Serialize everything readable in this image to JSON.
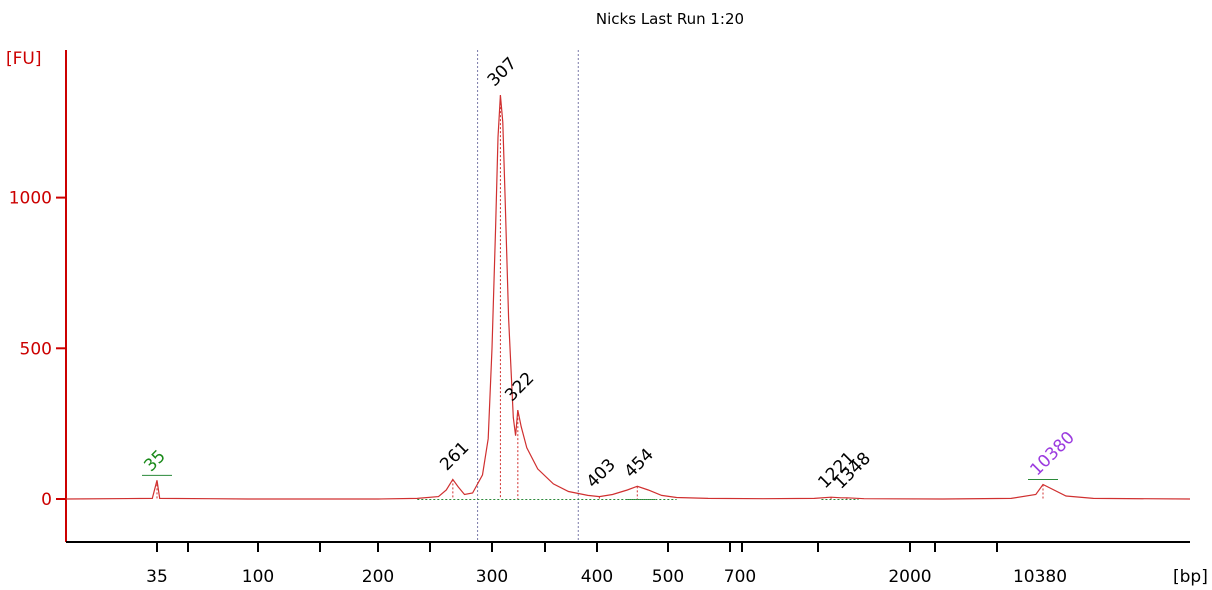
{
  "chart_data": {
    "type": "line",
    "title": "Nicks Last Run 1:20",
    "ylabel": "[FU]",
    "xlabel": "[bp]",
    "ylim": [
      -130,
      1500
    ],
    "y_ticks": [
      0,
      500,
      1000
    ],
    "x_ticks": [
      "35",
      "",
      "100",
      "",
      "200",
      "",
      "300",
      "",
      "400",
      "500",
      "",
      "700",
      "",
      "2000",
      "",
      "10380"
    ],
    "x_scale": "log (ladder-calibrated)",
    "grid": false,
    "colors": {
      "trace": "#d03030",
      "y_axis": "#cc0000",
      "x_axis": "#000000",
      "region_lines": "#7a7aaa",
      "lower_marker": "#1a8a1a",
      "upper_marker": "#9b3bdf",
      "peak_labels": "#000000",
      "baseline_segments": "#2a8a3a"
    },
    "region": {
      "from_bp": 285,
      "to_bp": 380
    },
    "peaks": [
      {
        "label": "35",
        "bp": 35,
        "fu": 62,
        "kind": "lower_marker"
      },
      {
        "label": "261",
        "bp": 261,
        "fu": 65,
        "kind": "peak"
      },
      {
        "label": "307",
        "bp": 307,
        "fu": 1340,
        "kind": "peak"
      },
      {
        "label": "322",
        "bp": 322,
        "fu": 295,
        "kind": "peak"
      },
      {
        "label": "403",
        "bp": 403,
        "fu": 8,
        "kind": "peak"
      },
      {
        "label": "454",
        "bp": 454,
        "fu": 42,
        "kind": "peak"
      },
      {
        "label": "1221",
        "bp": 1221,
        "fu": 6,
        "kind": "peak"
      },
      {
        "label": "1348",
        "bp": 1348,
        "fu": 4,
        "kind": "peak"
      },
      {
        "label": "10380",
        "bp": 10380,
        "fu": 48,
        "kind": "upper_marker"
      }
    ],
    "series": [
      {
        "x": [
          20,
          34,
          35,
          36,
          60,
          90,
          120,
          150,
          200,
          230,
          248,
          255,
          261,
          266,
          272,
          280,
          290,
          296,
          300,
          303,
          305,
          307,
          309,
          311,
          314,
          318,
          320,
          322,
          325,
          330,
          340,
          355,
          370,
          390,
          403,
          420,
          440,
          454,
          470,
          490,
          520,
          600,
          800,
          1100,
          1221,
          1300,
          1348,
          1500,
          3000,
          7000,
          9500,
          10380,
          11500,
          13000,
          20000
        ],
        "y": [
          0,
          2,
          62,
          2,
          1,
          0,
          0,
          0,
          0,
          2,
          8,
          30,
          65,
          40,
          15,
          20,
          80,
          200,
          500,
          900,
          1200,
          1340,
          1250,
          1000,
          600,
          270,
          210,
          295,
          240,
          170,
          100,
          50,
          25,
          12,
          8,
          15,
          30,
          42,
          30,
          12,
          5,
          2,
          1,
          2,
          6,
          4,
          4,
          1,
          0,
          2,
          15,
          48,
          10,
          2,
          0
        ]
      }
    ]
  }
}
